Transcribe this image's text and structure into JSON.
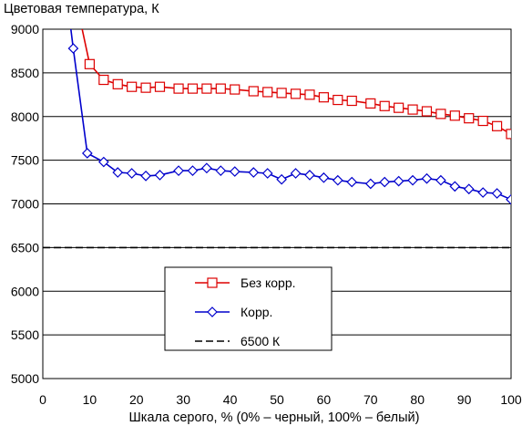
{
  "chart_data": {
    "type": "line",
    "title": "Цветовая температура, К",
    "xlabel": "Шкала серого, % (0% – черный, 100% – белый)",
    "ylabel": "",
    "xlim": [
      0,
      100
    ],
    "ylim": [
      5000,
      9000
    ],
    "xticks": [
      "0",
      "10",
      "20",
      "30",
      "40",
      "50",
      "60",
      "70",
      "80",
      "90",
      "100"
    ],
    "yticks": [
      "5000",
      "5500",
      "6000",
      "6500",
      "7000",
      "7500",
      "8000",
      "8500",
      "9000"
    ],
    "grid": "horizontal",
    "legend_position": "center",
    "series": [
      {
        "name": "Без корр.",
        "color": "#dd0000",
        "marker": "square",
        "x": [
          8.4,
          10,
          13,
          16,
          19,
          22,
          25,
          29,
          32,
          35,
          38,
          41,
          45,
          48,
          51,
          54,
          57,
          60,
          63,
          66,
          70,
          73,
          76,
          79,
          82,
          85,
          88,
          91,
          94,
          97,
          100
        ],
        "y": [
          9000,
          8600,
          8420,
          8370,
          8340,
          8330,
          8340,
          8320,
          8320,
          8320,
          8320,
          8310,
          8290,
          8280,
          8270,
          8260,
          8250,
          8220,
          8190,
          8180,
          8150,
          8120,
          8100,
          8080,
          8060,
          8030,
          8010,
          7980,
          7950,
          7890,
          7800
        ]
      },
      {
        "name": "Корр.",
        "color": "#0000cc",
        "marker": "diamond",
        "x": [
          6.0,
          6.5,
          9.5,
          13,
          16,
          19,
          22,
          25,
          29,
          32,
          35,
          38,
          41,
          45,
          48,
          51,
          54,
          57,
          60,
          63,
          66,
          70,
          73,
          76,
          79,
          82,
          85,
          88,
          91,
          94,
          97,
          100
        ],
        "y": [
          9000,
          8780,
          7580,
          7480,
          7360,
          7350,
          7320,
          7330,
          7380,
          7380,
          7410,
          7380,
          7370,
          7360,
          7350,
          7280,
          7350,
          7330,
          7300,
          7270,
          7250,
          7230,
          7250,
          7260,
          7270,
          7290,
          7270,
          7200,
          7170,
          7130,
          7120,
          7050
        ]
      },
      {
        "name": "6500 К",
        "color": "#000000",
        "marker": "none",
        "dashed": true,
        "x": [
          0,
          100
        ],
        "y": [
          6500,
          6500
        ]
      }
    ]
  }
}
